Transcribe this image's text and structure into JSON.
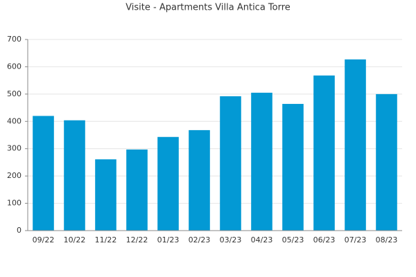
{
  "chart_data": {
    "type": "bar",
    "title": "Visite - Apartments Villa Antica Torre",
    "categories": [
      "09/22",
      "10/22",
      "11/22",
      "12/22",
      "01/23",
      "02/23",
      "03/23",
      "04/23",
      "05/23",
      "06/23",
      "07/23",
      "08/23"
    ],
    "values": [
      420,
      404,
      261,
      297,
      343,
      368,
      492,
      505,
      464,
      568,
      627,
      500
    ],
    "color": "#0399d4",
    "ylim": [
      0,
      700
    ],
    "yticks": [
      0,
      100,
      200,
      300,
      400,
      500,
      600,
      700
    ],
    "grid": true
  }
}
